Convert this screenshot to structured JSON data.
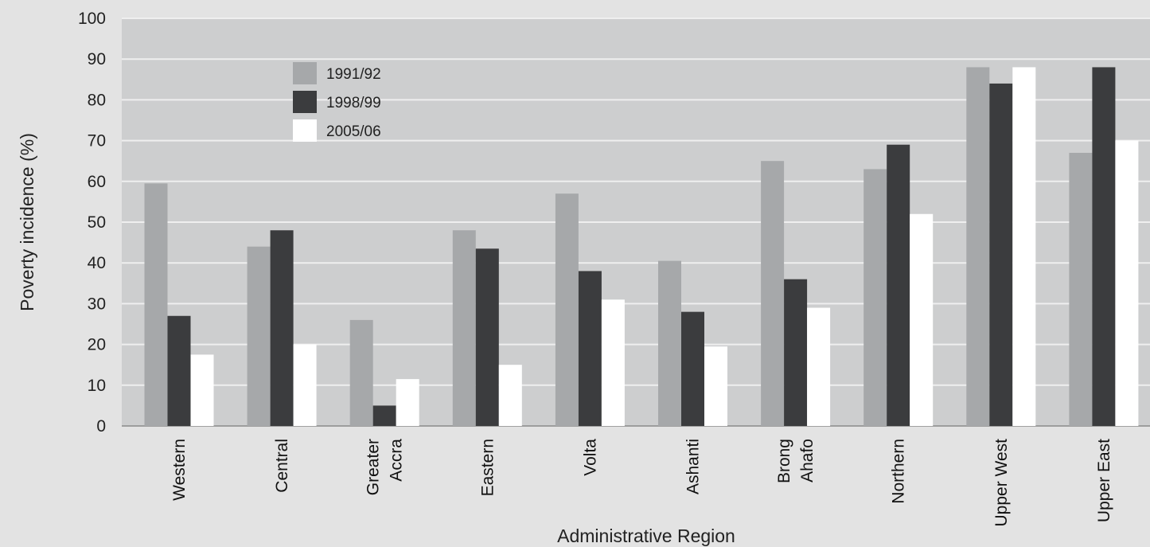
{
  "chart_data": {
    "type": "bar",
    "title": "",
    "xlabel": "Administrative Region",
    "ylabel": "Poverty incidence (%)",
    "ylim": [
      0,
      100
    ],
    "yticks": [
      0,
      10,
      20,
      30,
      40,
      50,
      60,
      70,
      80,
      90,
      100
    ],
    "grid": true,
    "legend_position": "top-left",
    "categories": [
      [
        "Western"
      ],
      [
        "Central"
      ],
      [
        "Greater",
        "Accra"
      ],
      [
        "Eastern"
      ],
      [
        "Volta"
      ],
      [
        "Ashanti"
      ],
      [
        "Brong",
        "Ahafo"
      ],
      [
        "Northern"
      ],
      [
        "Upper West"
      ],
      [
        "Upper East"
      ]
    ],
    "series": [
      {
        "name": "1991/92",
        "color": "#a6a8aa",
        "values": [
          59.5,
          44,
          26,
          48,
          57,
          40.5,
          65,
          63,
          88,
          67
        ]
      },
      {
        "name": "1998/99",
        "color": "#3b3c3e",
        "values": [
          27,
          48,
          5,
          43.5,
          38,
          28,
          36,
          69,
          84,
          88
        ]
      },
      {
        "name": "2005/06",
        "color": "#ffffff",
        "values": [
          17.5,
          20,
          11.5,
          15,
          31,
          19.5,
          29,
          52,
          88,
          70
        ]
      }
    ]
  }
}
